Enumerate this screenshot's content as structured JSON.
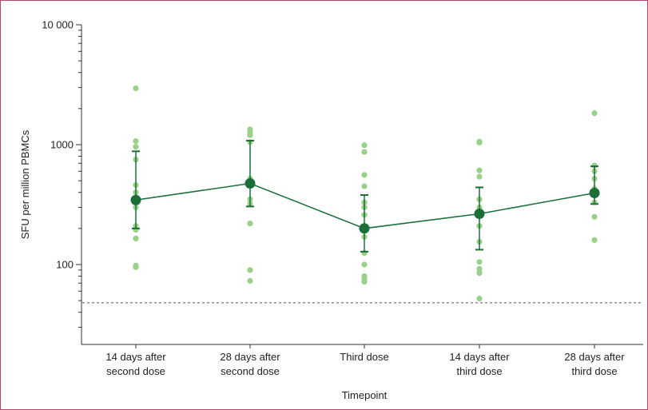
{
  "chart_data": {
    "type": "scatter",
    "xlabel": "Timepoint",
    "ylabel": "SFU per million PBMCs",
    "yscale": "log",
    "ylim": [
      25,
      10000
    ],
    "yticks": [
      100,
      1000,
      10000
    ],
    "ytick_labels": [
      "100",
      "1000",
      "10 000"
    ],
    "categories": [
      [
        "14 days after",
        "second dose"
      ],
      [
        "28 days after",
        "second dose"
      ],
      [
        "Third dose"
      ],
      [
        "14 days after",
        "third dose"
      ],
      [
        "28 days after",
        "third dose"
      ]
    ],
    "individual_points": [
      [
        2950,
        1070,
        960,
        750,
        460,
        400,
        300,
        210,
        195,
        165,
        98,
        95
      ],
      [
        1340,
        1260,
        1200,
        1050,
        520,
        470,
        350,
        320,
        220,
        90,
        73
      ],
      [
        990,
        870,
        560,
        450,
        330,
        300,
        260,
        170,
        125,
        100,
        80,
        75,
        72
      ],
      [
        1060,
        1040,
        610,
        540,
        350,
        300,
        210,
        155,
        105,
        92,
        85,
        52
      ],
      [
        1830,
        670,
        600,
        520,
        430,
        400,
        330,
        250,
        160
      ]
    ],
    "series": [
      {
        "values": [
          345,
          475,
          200,
          265,
          395
        ],
        "ci_lower": [
          200,
          305,
          128,
          133,
          320
        ],
        "ci_upper": [
          880,
          1080,
          380,
          440,
          660
        ]
      }
    ],
    "reference_line": 48,
    "grid": false,
    "colors": {
      "points": "#9bd08a",
      "mean": "#1b6e38",
      "line": "#1b6e38",
      "reference": "#5b6e74",
      "frame": "#b5476e"
    }
  }
}
